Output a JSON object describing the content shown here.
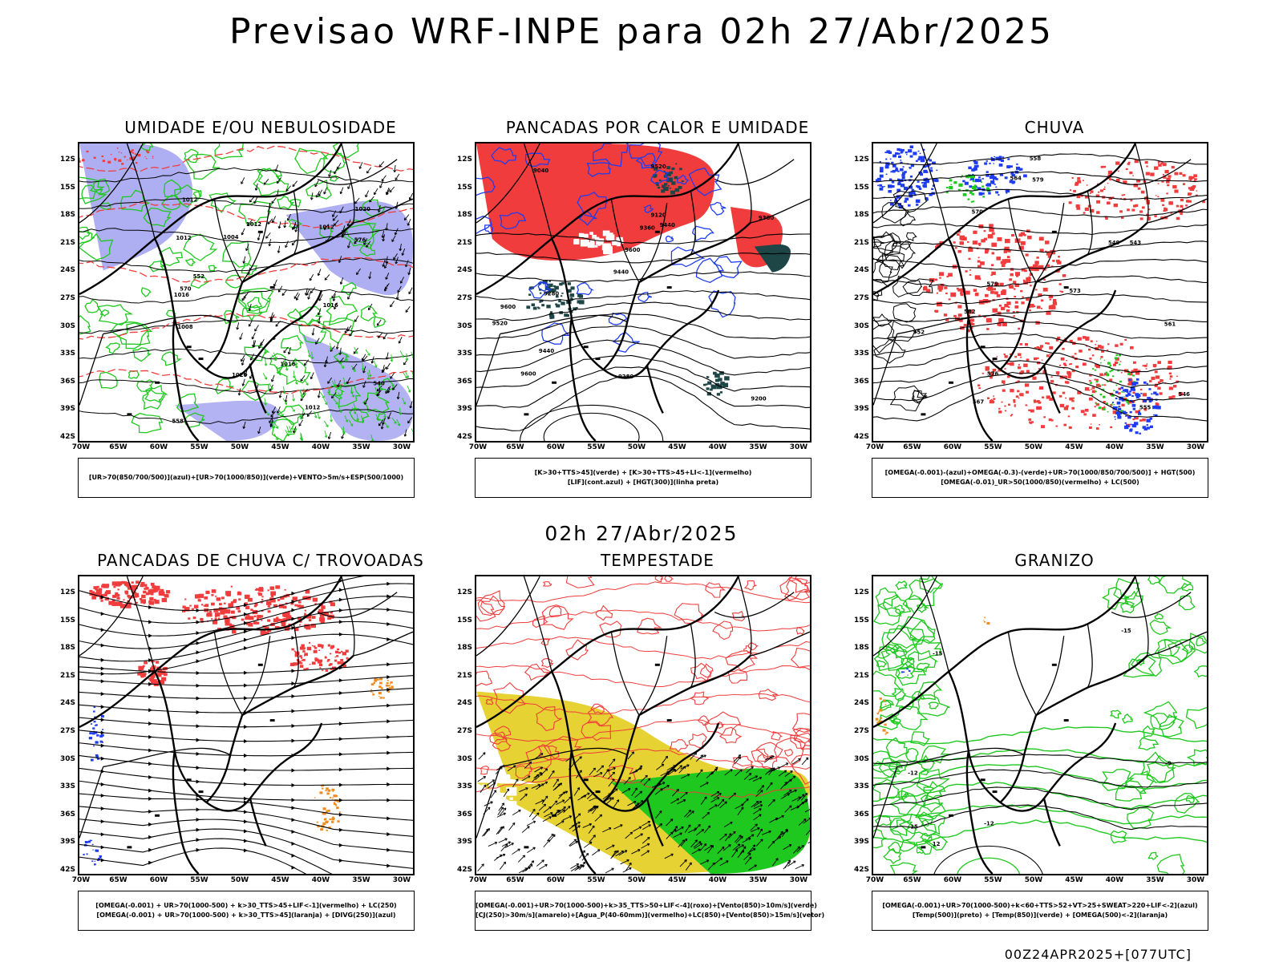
{
  "header": {
    "title": "Previsao WRF-INPE  para 02h 27/Abr/2025",
    "mid_time": "02h 27/Abr/2025",
    "run_info": "00Z24APR2025+[077UTC]"
  },
  "axes": {
    "lat": [
      "12S",
      "15S",
      "18S",
      "21S",
      "24S",
      "27S",
      "30S",
      "33S",
      "36S",
      "39S",
      "42S"
    ],
    "lon": [
      "70W",
      "65W",
      "60W",
      "55W",
      "50W",
      "45W",
      "40W",
      "35W",
      "30W"
    ]
  },
  "colors": {
    "red": "#f03c3c",
    "green": "#1ec81e",
    "blue": "#1e3cf0",
    "lavender": "#a0a0f0",
    "dark_teal": "#1e4646",
    "yellow": "#e6d232",
    "orange": "#f08c1e",
    "black": "#000000"
  },
  "panels": [
    {
      "title": "UMIDADE E/OU NEBULOSIDADE",
      "legend": [
        "[UR>70(850/700/500)](azul)+[UR>70(1000/850)](verde)+VENTO>5m/s+ESP(500/1000)"
      ],
      "labels": [
        "1012",
        "1012",
        "1012",
        "1012",
        "1016",
        "1016",
        "1020",
        "1020",
        "1016",
        "1012",
        "1008",
        "1004",
        "576",
        "570",
        "558",
        "552",
        "540"
      ]
    },
    {
      "title": "PANCADAS POR CALOR E UMIDADE",
      "legend": [
        "[K>30+TTS>45](verde) + [K>30+TTS>45+LI<-1](vermelho)",
        "[LIF](cont.azul) + [HGT(300)](linha preta)"
      ],
      "labels": [
        "9600",
        "9600",
        "9520",
        "9520",
        "9440",
        "9440",
        "9440",
        "9360",
        "9360",
        "9280",
        "9280",
        "9200",
        "9120",
        "9040",
        "9600"
      ]
    },
    {
      "title": "CHUVA",
      "legend": [
        "[OMEGA(-0.001)-(azul)+OMEGA(-0.3)-(verde)+UR>70(1000/850/700/500)] + HGT(500)",
        "[OMEGA(-0.01)_UR>50(1000/850)(vermelho) + LC(500)"
      ],
      "labels": [
        "582",
        "579",
        "579",
        "576",
        "573",
        "570",
        "567",
        "564",
        "561",
        "558",
        "555",
        "552",
        "549",
        "546",
        "543"
      ]
    },
    {
      "title": "PANCADAS DE CHUVA C/ TROVOADAS",
      "legend": [
        "[OMEGA(-0.001) + UR>70(1000-500) + k>30_TTS>45+LIF<-1](vermelho) + LC(250)",
        "[OMEGA(-0.001) + UR>70(1000-500) + k>30_TTS>45](laranja) + [DIVG(250)](azul)"
      ],
      "labels": []
    },
    {
      "title": "TEMPESTADE",
      "legend": [
        "[OMEGA(-0.001)+UR>70(1000-500)+k>35_TTS>50+LIF<-4](roxo)+[Vento(850)>10m/s](verde)",
        "[CJ(250)>30m/s](amarelo)+[Agua_P(40-60mm)](vermelho)+LC(850)+[Vento(850)>15m/s](vetor)"
      ],
      "labels": []
    },
    {
      "title": "GRANIZO",
      "legend": [
        "[OMEGA(-0.001)+UR>70(1000-500)+k<60+TTS>52+VT>25+SWEAT>220+LIF<-2](azul)",
        "[Temp(500)](preto) + [Temp(850)](verde) + [OMEGA(500)<-2](laranja)"
      ],
      "labels": [
        "-12",
        "-15",
        "-12",
        "-15",
        "-9",
        "12",
        "15"
      ]
    }
  ]
}
